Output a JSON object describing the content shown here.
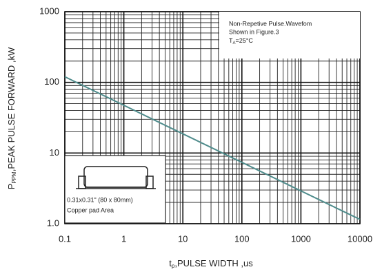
{
  "chart_data": {
    "type": "line",
    "x_label": {
      "symbol": "t",
      "subscript": "p",
      "text": ",PULSE WIDTH ,us"
    },
    "y_label": {
      "symbol": "P",
      "subscript": "PPM",
      "text": ",PEAK PULSE  FORWARD ,kW"
    },
    "x": [
      0.1,
      10000
    ],
    "series": [
      {
        "color": "#4f8c8c",
        "values": [
          120,
          1.15
        ]
      }
    ],
    "xlim": [
      0.1,
      10000
    ],
    "ylim": [
      1,
      1000
    ],
    "xticks": [
      0.1,
      1,
      10,
      100,
      1000,
      10000
    ],
    "yticks": [
      1000,
      100,
      10,
      {
        "value": 1,
        "label": "1.0"
      }
    ],
    "log_x": true,
    "log_y": true,
    "grid": true,
    "minor_grid": true,
    "annotations": [
      {
        "lines": [
          "Non-Repetive  Pulse.Wavefom",
          "Shown in Figure.3"
        ],
        "temp": {
          "symbol": "T",
          "subscript": "A",
          "text": "=25°C"
        }
      },
      {
        "lines": [
          "0.31x0.31\" (80 x 80mm)",
          "Copper pad Area"
        ]
      }
    ]
  }
}
